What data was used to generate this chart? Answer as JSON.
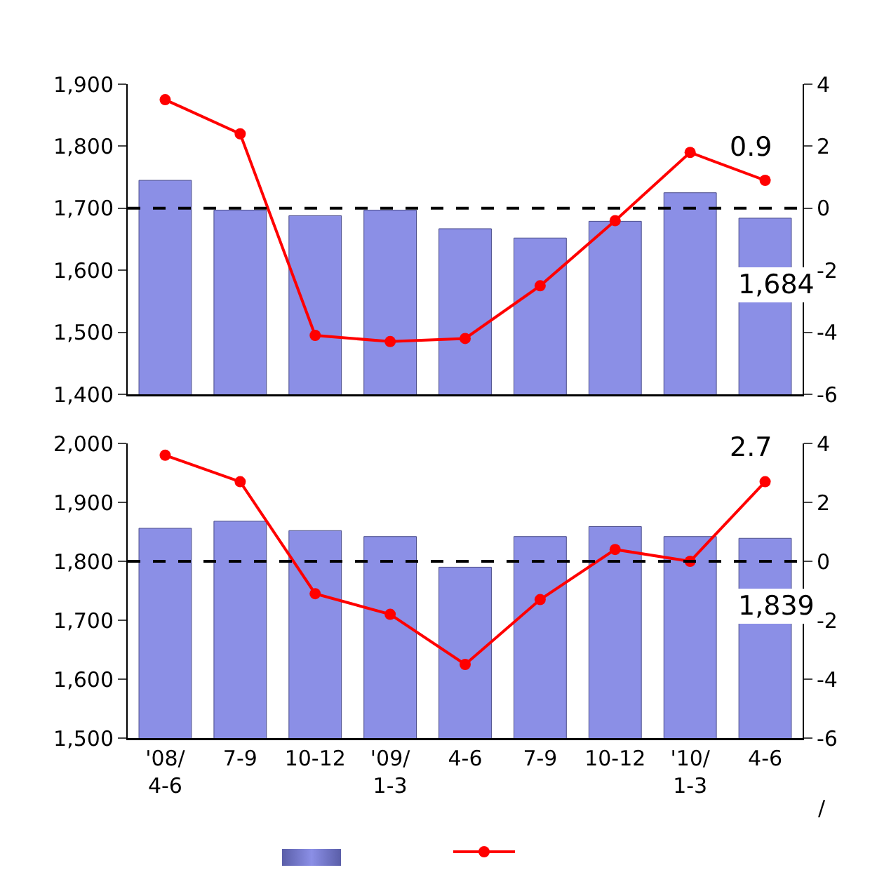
{
  "chart_data": [
    {
      "type": "bar",
      "categories": [
        null,
        null,
        null,
        null,
        null,
        null,
        null,
        null,
        null
      ],
      "series": [
        {
          "color": "#8b8fe6",
          "values": [
            1745,
            1697,
            1688,
            1697,
            1667,
            1652,
            1679,
            1725,
            1684
          ],
          "value_labels": [
            null,
            null,
            null,
            null,
            null,
            null,
            null,
            null,
            "1,684"
          ]
        },
        {
          "type": "line",
          "axis": "y2",
          "color": "#ff0000",
          "values": [
            3.5,
            2.4,
            -4.1,
            -4.3,
            -4.2,
            -2.5,
            -0.4,
            1.8,
            0.9
          ],
          "value_labels": [
            null,
            null,
            null,
            null,
            null,
            null,
            null,
            null,
            "0.9"
          ]
        }
      ],
      "ylim": [
        1400,
        1900
      ],
      "yticks": [
        {
          "value": 1400,
          "label": "1,400"
        },
        {
          "value": 1500,
          "label": "1,500"
        },
        {
          "value": 1600,
          "label": "1,600"
        },
        {
          "value": 1700,
          "label": "1,700"
        },
        {
          "value": 1800,
          "label": "1,800"
        },
        {
          "value": 1900,
          "label": "1,900"
        }
      ],
      "y2lim": [
        -6,
        4
      ],
      "y2ticks": [
        -6,
        -4,
        -2,
        0,
        2,
        4
      ],
      "ref_lines": [
        {
          "axis": "y2",
          "value": 0,
          "color": "#000000",
          "line_style": "dashed"
        }
      ],
      "marker": "circle",
      "grid": false,
      "tick_labels": "y"
    },
    {
      "type": "bar",
      "categories": [
        "'08/\n4-6",
        "7-9",
        "10-12",
        "'09/\n1-3",
        "4-6",
        "7-9",
        "10-12",
        "'10/\n1-3",
        "4-6"
      ],
      "series": [
        {
          "color": "#8b8fe6",
          "values": [
            1856,
            1868,
            1852,
            1842,
            1790,
            1842,
            1859,
            1842,
            1839
          ],
          "value_labels": [
            null,
            null,
            null,
            null,
            null,
            null,
            null,
            null,
            "1,839"
          ]
        },
        {
          "type": "line",
          "axis": "y2",
          "color": "#ff0000",
          "values": [
            3.6,
            2.7,
            -1.1,
            -1.8,
            -3.5,
            -1.3,
            0.4,
            0,
            2.7
          ],
          "value_labels": [
            null,
            null,
            null,
            null,
            null,
            null,
            null,
            null,
            "2.7"
          ]
        }
      ],
      "ylim": [
        1500,
        2000
      ],
      "yticks": [
        {
          "value": 1500,
          "label": "1,500"
        },
        {
          "value": 1600,
          "label": "1,600"
        },
        {
          "value": 1700,
          "label": "1,700"
        },
        {
          "value": 1800,
          "label": "1,800"
        },
        {
          "value": 1900,
          "label": "1,900"
        },
        {
          "value": 2000,
          "label": "2,000"
        }
      ],
      "y2lim": [
        -6,
        4
      ],
      "y2ticks": [
        -6,
        -4,
        -2,
        0,
        2,
        4
      ],
      "ref_lines": [
        {
          "axis": "y2",
          "value": 0,
          "color": "#000000",
          "line_style": "dashed"
        }
      ],
      "annotations": [
        "/"
      ],
      "marker": "circle",
      "grid": false
    }
  ]
}
